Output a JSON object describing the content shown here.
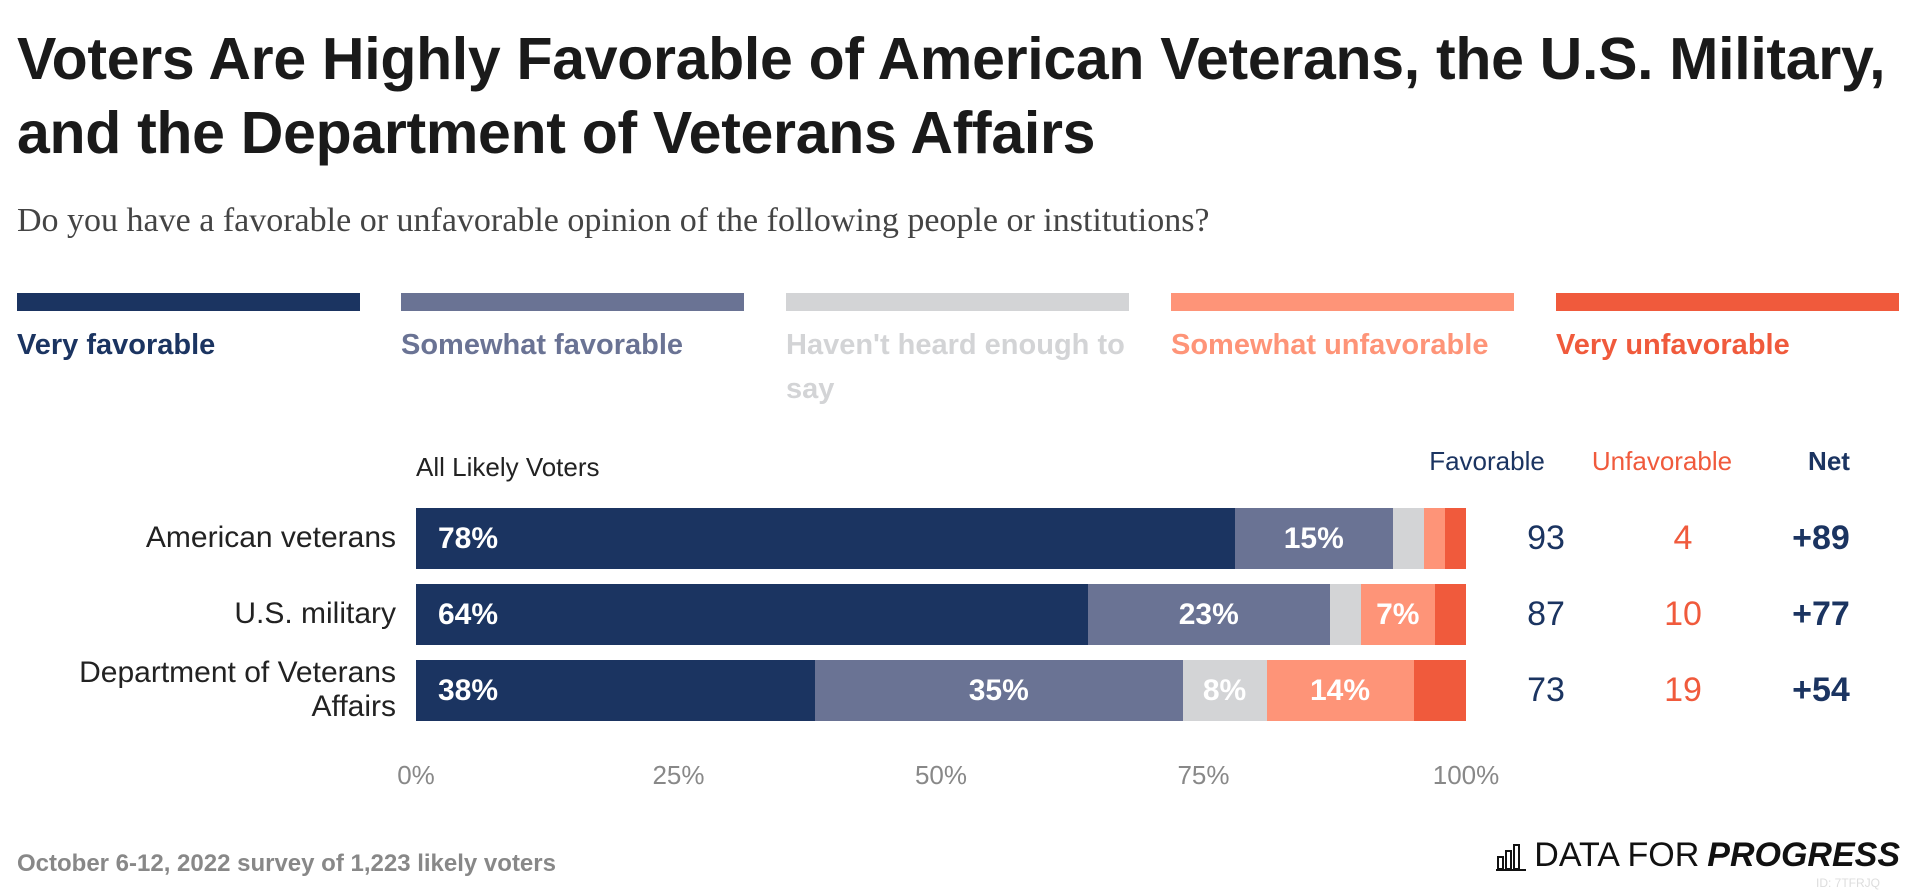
{
  "title": "Voters Are Highly Favorable of American Veterans, the U.S. Military, and the Department of Veterans Affairs",
  "subtitle": "Do you have a favorable or unfavorable opinion of the following people or institutions?",
  "footer": "October 6-12, 2022 survey of 1,223 likely voters",
  "logo": {
    "text_light": "DATA FOR",
    "text_bold": "PROGRESS",
    "icon": "bar-chart-icon"
  },
  "watermark": "ID: 7TFRJQ",
  "chart_data": {
    "type": "bar",
    "orientation": "horizontal-stacked",
    "group_label": "All Likely Voters",
    "categories": [
      "American veterans",
      "U.S. military",
      "Department of Veterans Affairs"
    ],
    "series": [
      {
        "name": "Very favorable",
        "color": "#1b3461",
        "values": [
          78,
          64,
          38
        ],
        "labels": [
          "78%",
          "64%",
          "38%"
        ]
      },
      {
        "name": "Somewhat favorable",
        "color": "#6a7394",
        "values": [
          15,
          23,
          35
        ],
        "labels": [
          "15%",
          "23%",
          "35%"
        ]
      },
      {
        "name": "Haven't heard enough to say",
        "color": "#d3d4d6",
        "values": [
          3,
          3,
          8
        ],
        "labels": [
          "",
          "",
          "8%"
        ]
      },
      {
        "name": "Somewhat unfavorable",
        "color": "#fe9478",
        "values": [
          2,
          7,
          14
        ],
        "labels": [
          "",
          "7%",
          "14%"
        ]
      },
      {
        "name": "Very unfavorable",
        "color": "#f05a3c",
        "values": [
          2,
          3,
          5
        ],
        "labels": [
          "",
          "",
          ""
        ]
      }
    ],
    "xlim": [
      0,
      100
    ],
    "xticks": [
      "0%",
      "25%",
      "50%",
      "75%",
      "100%"
    ],
    "summary_columns": [
      {
        "header": "Favorable",
        "color": "#1b3461",
        "values": [
          "93",
          "87",
          "73"
        ]
      },
      {
        "header": "Unfavorable",
        "color": "#f05a3c",
        "values": [
          "4",
          "10",
          "19"
        ]
      },
      {
        "header": "Net",
        "color": "#1b3461",
        "bold": true,
        "values": [
          "+89",
          "+77",
          "+54"
        ]
      }
    ],
    "legend_placement": "top"
  }
}
